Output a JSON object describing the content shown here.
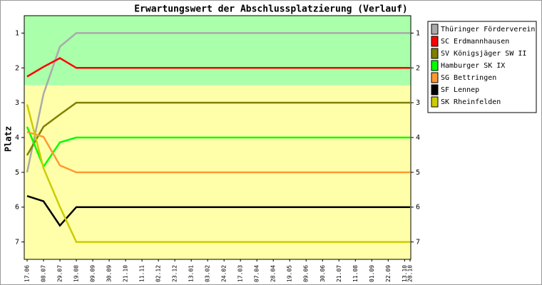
{
  "chart_data": {
    "type": "line",
    "title": "Erwartungswert der Abschlussplatzierung (Verlauf)",
    "y_label": "Platz",
    "categories": [
      "17.06",
      "08.07",
      "29.07",
      "19.08",
      "09.09",
      "30.09",
      "21.10",
      "11.11",
      "02.12",
      "23.12",
      "13.01",
      "03.02",
      "24.02",
      "17.03",
      "07.04",
      "28.04",
      "19.05",
      "09.06",
      "30.06",
      "21.07",
      "11.08",
      "01.09",
      "22.09",
      "13.10",
      "20.10"
    ],
    "ylim": [
      7.5,
      0.5
    ],
    "yticks": [
      1,
      2,
      3,
      4,
      5,
      6,
      7
    ],
    "inverted": true,
    "bands": [
      {
        "from": 0.5,
        "to": 2.5,
        "color": "#aaffaa"
      },
      {
        "from": 2.5,
        "to": 7.5,
        "color": "#ffffaa"
      }
    ],
    "legend": "right",
    "series": [
      {
        "name": "Thüringer Förderverein",
        "color": "#aaaaaa",
        "values": [
          5.0,
          2.75,
          1.39,
          1,
          1,
          1,
          1,
          1,
          1,
          1,
          1,
          1,
          1,
          1,
          1,
          1,
          1,
          1,
          1,
          1,
          1,
          1,
          1,
          1,
          1
        ]
      },
      {
        "name": "SC Erdmannhausen",
        "color": "#ff0000",
        "values": [
          2.25,
          1.97,
          1.72,
          2,
          2,
          2,
          2,
          2,
          2,
          2,
          2,
          2,
          2,
          2,
          2,
          2,
          2,
          2,
          2,
          2,
          2,
          2,
          2,
          2,
          2
        ]
      },
      {
        "name": "SV Königsjäger SW II",
        "color": "#808000",
        "values": [
          4.51,
          3.69,
          3.34,
          3,
          3,
          3,
          3,
          3,
          3,
          3,
          3,
          3,
          3,
          3,
          3,
          3,
          3,
          3,
          3,
          3,
          3,
          3,
          3,
          3,
          3
        ]
      },
      {
        "name": "Hamburger SK IX",
        "color": "#00ff00",
        "values": [
          3.69,
          4.84,
          4.14,
          4,
          4,
          4,
          4,
          4,
          4,
          4,
          4,
          4,
          4,
          4,
          4,
          4,
          4,
          4,
          4,
          4,
          4,
          4,
          4,
          4,
          4
        ]
      },
      {
        "name": "SG Bettringen",
        "color": "#ff9933",
        "values": [
          3.84,
          3.98,
          4.8,
          5,
          5,
          5,
          5,
          5,
          5,
          5,
          5,
          5,
          5,
          5,
          5,
          5,
          5,
          5,
          5,
          5,
          5,
          5,
          5,
          5,
          5
        ]
      },
      {
        "name": "SF Lennep",
        "color": "#000000",
        "values": [
          5.68,
          5.83,
          6.53,
          6,
          6,
          6,
          6,
          6,
          6,
          6,
          6,
          6,
          6,
          6,
          6,
          6,
          6,
          6,
          6,
          6,
          6,
          6,
          6,
          6,
          6
        ]
      },
      {
        "name": "SK Rheinfelden",
        "color": "#cccc00",
        "values": [
          3.05,
          4.88,
          5.99,
          7,
          7,
          7,
          7,
          7,
          7,
          7,
          7,
          7,
          7,
          7,
          7,
          7,
          7,
          7,
          7,
          7,
          7,
          7,
          7,
          7,
          7
        ]
      }
    ]
  }
}
